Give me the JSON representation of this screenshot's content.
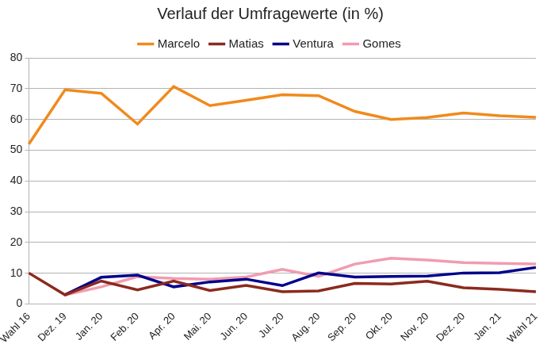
{
  "chart_data": {
    "type": "line",
    "title": "Verlauf der Umfragewerte (in %)",
    "categories": [
      "Wahl 16",
      "Dez. 19",
      "Jan. 20",
      "Feb. 20",
      "Apr. 20",
      "Mai. 20",
      "Jun. 20",
      "Jul. 20",
      "Aug. 20",
      "Sep. 20",
      "Okt. 20",
      "Nov. 20",
      "Dez. 20",
      "Jan. 21",
      "Wahl 21"
    ],
    "series": [
      {
        "name": "Marcelo",
        "color": "#f08a1c",
        "values": [
          52,
          69.6,
          68.5,
          58.5,
          70.7,
          64.5,
          66.2,
          68,
          67.7,
          62.6,
          60,
          60.6,
          62.1,
          61.2,
          60.7
        ]
      },
      {
        "name": "Matias",
        "color": "#8b2a1e",
        "values": [
          10.1,
          3,
          7.5,
          4.6,
          7.5,
          4.4,
          6.1,
          4,
          4.3,
          6.7,
          6.5,
          7.4,
          5.3,
          4.8,
          4
        ]
      },
      {
        "name": "Ventura",
        "color": "#00008b",
        "values": [
          null,
          3,
          8.7,
          9.4,
          5.6,
          7.2,
          8.1,
          6,
          10.1,
          8.8,
          9,
          9.1,
          10.1,
          10.2,
          11.9
        ]
      },
      {
        "name": "Gomes",
        "color": "#f19cb0",
        "values": [
          null,
          3,
          5.6,
          8.9,
          8.3,
          8.1,
          8.8,
          11.3,
          9,
          13,
          14.9,
          14.3,
          13.5,
          13.2,
          13
        ]
      }
    ],
    "ylim": [
      0,
      80
    ],
    "yticks": [
      0,
      10,
      20,
      30,
      40,
      50,
      60,
      70,
      80
    ],
    "grid": true,
    "legend": "top"
  }
}
